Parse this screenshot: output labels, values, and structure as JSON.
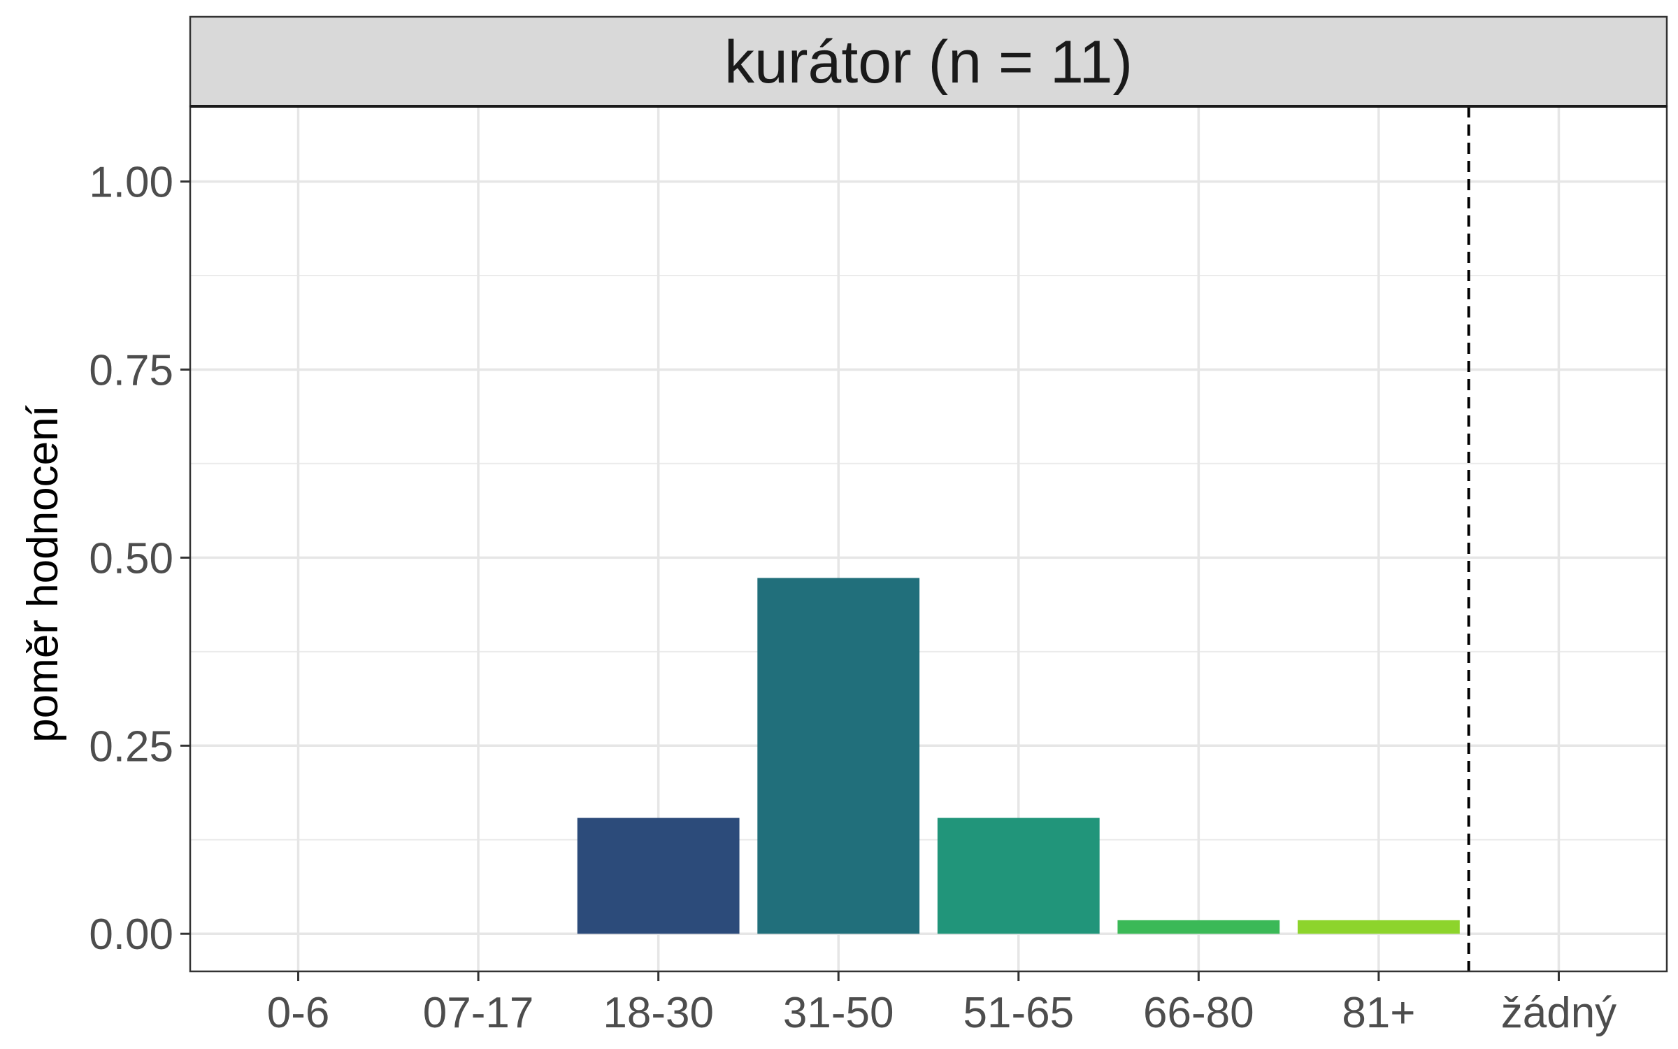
{
  "chart_data": {
    "type": "bar",
    "title": "kurátor (n = 11)",
    "xlabel": "",
    "ylabel": "poměr hodnocení",
    "categories": [
      "0-6",
      "07-17",
      "18-30",
      "31-50",
      "51-65",
      "66-80",
      "81+",
      "žádný"
    ],
    "values": [
      0,
      0,
      0.154,
      0.473,
      0.154,
      0.018,
      0.018,
      0
    ],
    "bar_colors": [
      "#440154",
      "#46337e",
      "#2c4b7a",
      "#216f7b",
      "#21957a",
      "#3bb957",
      "#8dd42c",
      "#fde725"
    ],
    "ylim": [
      -0.05,
      1.1
    ],
    "yticks": [
      0,
      0.25,
      0.5,
      0.75,
      1.0
    ],
    "ytick_labels": [
      "0.00",
      "0.25",
      "0.50",
      "0.75",
      "1.00"
    ],
    "reference_line": {
      "position": "between 81+ and žádný",
      "style": "dashed",
      "color": "#000000"
    },
    "grid": true,
    "legend": "none"
  }
}
